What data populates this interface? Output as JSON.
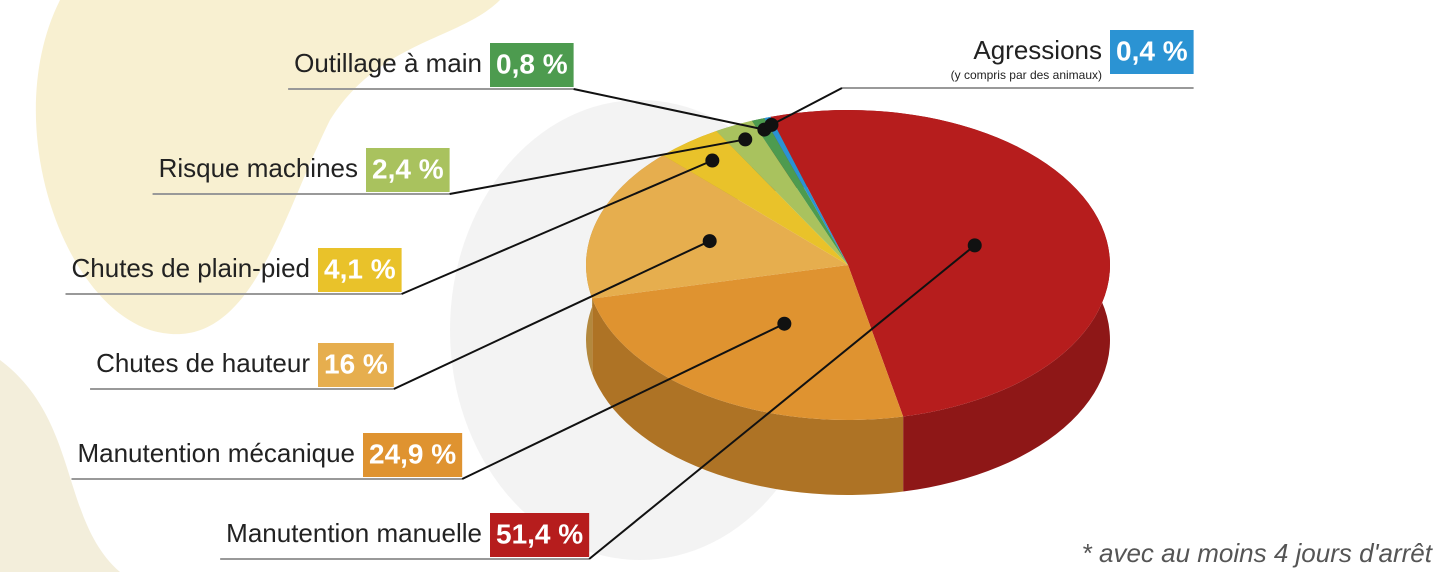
{
  "chart_data": {
    "type": "pie",
    "categories": [
      "Manutention manuelle",
      "Manutention mécanique",
      "Chutes de hauteur",
      "Chutes de plain-pied",
      "Risque machines",
      "Outillage à main",
      "Agressions"
    ],
    "values": [
      51.4,
      24.9,
      16,
      4.1,
      2.4,
      0.8,
      0.4
    ],
    "value_labels": [
      "51,4 %",
      "24,9 %",
      "16 %",
      "4,1 %",
      "2,4 %",
      "0,8 %",
      "0,4 %"
    ],
    "colors": [
      "#b61d1d",
      "#df9330",
      "#e6ae4e",
      "#e9c22a",
      "#a9c25e",
      "#4d9b4f",
      "#2b93d3"
    ],
    "annotations": [
      "(y compris par des animaux)",
      "* avec au moins 4 jours d'arrêt"
    ]
  }
}
